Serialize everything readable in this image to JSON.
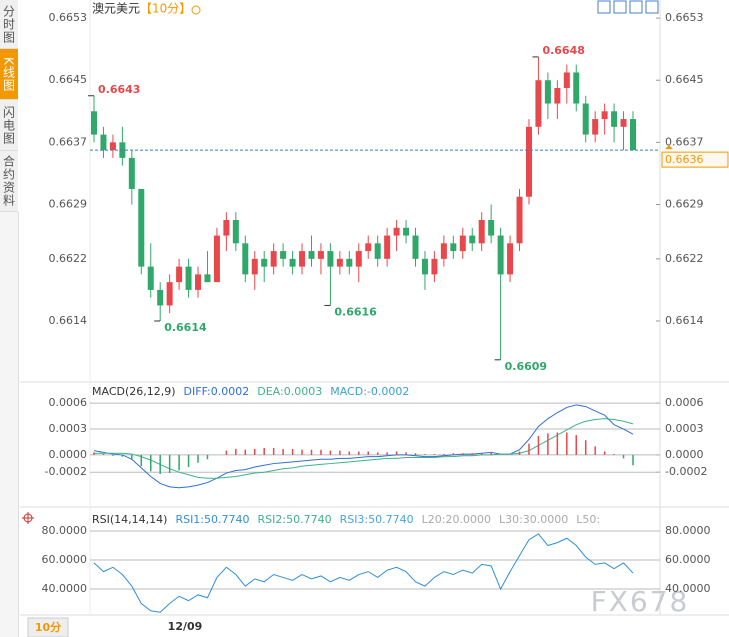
{
  "sidebar": {
    "tabs": [
      "分时图",
      "K线图",
      "闪电图",
      "合约资料"
    ]
  },
  "header": {
    "symbol": "澳元美元",
    "period": "【10分】"
  },
  "chart_data": [
    {
      "type": "candlestick",
      "ylim": [
        0.66064,
        0.66543
      ],
      "yticks": [
        0.6653,
        0.6645,
        0.6637,
        0.6629,
        0.6622,
        0.6614
      ],
      "up_color": "#e8484c",
      "down_color": "#2fa86a",
      "last_price": 0.6636,
      "annotations": [
        0.6643,
        0.6648,
        0.6614,
        0.6616,
        0.6609
      ],
      "candles": [
        [
          0.6641,
          0.6643,
          0.6637,
          0.6638
        ],
        [
          0.6638,
          0.6639,
          0.6635,
          0.6636
        ],
        [
          0.6636,
          0.6638,
          0.6635,
          0.6637
        ],
        [
          0.6637,
          0.6639,
          0.6634,
          0.6635
        ],
        [
          0.6635,
          0.6636,
          0.6629,
          0.6631
        ],
        [
          0.6631,
          0.6631,
          0.662,
          0.6621
        ],
        [
          0.6621,
          0.6624,
          0.6617,
          0.6618
        ],
        [
          0.6618,
          0.6619,
          0.6614,
          0.6616
        ],
        [
          0.6616,
          0.662,
          0.6615,
          0.6619
        ],
        [
          0.6619,
          0.6622,
          0.6618,
          0.6621
        ],
        [
          0.6621,
          0.6622,
          0.6617,
          0.6618
        ],
        [
          0.6618,
          0.6621,
          0.6617,
          0.662
        ],
        [
          0.662,
          0.6623,
          0.6619,
          0.6619
        ],
        [
          0.6619,
          0.6626,
          0.6619,
          0.6625
        ],
        [
          0.6625,
          0.6628,
          0.6623,
          0.6627
        ],
        [
          0.6627,
          0.6628,
          0.6623,
          0.6624
        ],
        [
          0.6624,
          0.6625,
          0.6619,
          0.662
        ],
        [
          0.662,
          0.6623,
          0.6618,
          0.6622
        ],
        [
          0.6622,
          0.6623,
          0.6619,
          0.6621
        ],
        [
          0.6621,
          0.6624,
          0.662,
          0.6623
        ],
        [
          0.6623,
          0.6624,
          0.6621,
          0.6622
        ],
        [
          0.6622,
          0.6623,
          0.662,
          0.6621
        ],
        [
          0.6621,
          0.6624,
          0.662,
          0.6623
        ],
        [
          0.6623,
          0.6625,
          0.6621,
          0.6622
        ],
        [
          0.6622,
          0.6624,
          0.662,
          0.6623
        ],
        [
          0.6623,
          0.6624,
          0.6616,
          0.6621
        ],
        [
          0.6621,
          0.6623,
          0.662,
          0.6622
        ],
        [
          0.6622,
          0.6623,
          0.662,
          0.6621
        ],
        [
          0.6621,
          0.6624,
          0.6619,
          0.6623
        ],
        [
          0.6623,
          0.6625,
          0.6622,
          0.6624
        ],
        [
          0.6624,
          0.6625,
          0.6621,
          0.6622
        ],
        [
          0.6622,
          0.6626,
          0.6621,
          0.6625
        ],
        [
          0.6625,
          0.6627,
          0.6623,
          0.6626
        ],
        [
          0.6626,
          0.6627,
          0.6624,
          0.6625
        ],
        [
          0.6625,
          0.6626,
          0.6621,
          0.6622
        ],
        [
          0.6622,
          0.6623,
          0.6618,
          0.662
        ],
        [
          0.662,
          0.6623,
          0.6619,
          0.6622
        ],
        [
          0.6622,
          0.6625,
          0.6621,
          0.6624
        ],
        [
          0.6624,
          0.6625,
          0.6622,
          0.6623
        ],
        [
          0.6623,
          0.6626,
          0.6622,
          0.6625
        ],
        [
          0.6625,
          0.6626,
          0.6623,
          0.6624
        ],
        [
          0.6624,
          0.6628,
          0.6623,
          0.6627
        ],
        [
          0.6627,
          0.6629,
          0.6624,
          0.6625
        ],
        [
          0.6625,
          0.6626,
          0.6609,
          0.662
        ],
        [
          0.662,
          0.6625,
          0.6619,
          0.6624
        ],
        [
          0.6624,
          0.6631,
          0.6623,
          0.663
        ],
        [
          0.663,
          0.664,
          0.6629,
          0.6639
        ],
        [
          0.6639,
          0.6648,
          0.6638,
          0.6645
        ],
        [
          0.6645,
          0.6646,
          0.664,
          0.6642
        ],
        [
          0.6642,
          0.6645,
          0.664,
          0.6644
        ],
        [
          0.6644,
          0.6647,
          0.6642,
          0.6646
        ],
        [
          0.6646,
          0.6647,
          0.6641,
          0.6642
        ],
        [
          0.6642,
          0.6643,
          0.6637,
          0.6638
        ],
        [
          0.6638,
          0.6641,
          0.6637,
          0.664
        ],
        [
          0.664,
          0.6642,
          0.6638,
          0.6641
        ],
        [
          0.6641,
          0.6642,
          0.6637,
          0.6639
        ],
        [
          0.6639,
          0.6641,
          0.6636,
          0.664
        ],
        [
          0.664,
          0.6641,
          0.6636,
          0.6636
        ]
      ]
    },
    {
      "type": "macd",
      "title": "MACD(26,12,9)",
      "ylim": [
        -0.00058,
        0.00081
      ],
      "yticks": [
        0.0006,
        0.0003,
        {
          "value": 0,
          "label": "0.0000"
        },
        -0.0002
      ],
      "up_color": "#e8484c",
      "down_color": "#2fa86a",
      "series": [
        {
          "name": "DIFF:0.0002",
          "color": "#2f6fd8",
          "values": [
            5e-05,
            3e-05,
            1e-05,
            0,
            -5e-05,
            -0.00015,
            -0.00025,
            -0.00033,
            -0.00037,
            -0.00038,
            -0.00037,
            -0.00035,
            -0.00032,
            -0.00027,
            -0.00021,
            -0.00018,
            -0.00017,
            -0.00014,
            -0.00012,
            -0.0001,
            -9e-05,
            -8e-05,
            -7e-05,
            -6e-05,
            -5e-05,
            -5e-05,
            -4e-05,
            -4e-05,
            -3e-05,
            -2e-05,
            -2e-05,
            -1e-05,
            0,
            0,
            -1e-05,
            -2e-05,
            -2e-05,
            -1e-05,
            0,
            1e-05,
            1e-05,
            2e-05,
            3e-05,
            1e-05,
            1e-05,
            6e-05,
            0.00018,
            0.00033,
            0.00042,
            0.00049,
            0.00055,
            0.00058,
            0.00056,
            0.00051,
            0.00046,
            0.00035,
            0.0003,
            0.00024
          ]
        },
        {
          "name": "DEA:0.0003",
          "color": "#3cb38a",
          "values": [
            2e-05,
            2e-05,
            2e-05,
            2e-05,
            1e-05,
            -2e-05,
            -6e-05,
            -0.00011,
            -0.00016,
            -0.0002,
            -0.00023,
            -0.00026,
            -0.00027,
            -0.00027,
            -0.00026,
            -0.00025,
            -0.00023,
            -0.00021,
            -0.0002,
            -0.00018,
            -0.00016,
            -0.00015,
            -0.00013,
            -0.00012,
            -0.00011,
            -0.0001,
            -9e-05,
            -8e-05,
            -7e-05,
            -6e-05,
            -5e-05,
            -4e-05,
            -4e-05,
            -3e-05,
            -3e-05,
            -3e-05,
            -3e-05,
            -2e-05,
            -2e-05,
            -1e-05,
            -1e-05,
            0,
            0,
            1e-05,
            1e-05,
            2e-05,
            5e-05,
            0.00011,
            0.00017,
            0.00023,
            0.00029,
            0.00035,
            0.00039,
            0.00041,
            0.00042,
            0.00041,
            0.00039,
            0.00036
          ]
        },
        {
          "name": "MACD:-0.0002",
          "color": "#3a9fd0",
          "histogram": true,
          "values": [
            3e-05,
            1e-05,
            -1e-05,
            -2e-05,
            -6e-05,
            -0.00013,
            -0.00019,
            -0.00022,
            -0.00021,
            -0.00018,
            -0.00014,
            -9e-05,
            -5e-05,
            0,
            5e-05,
            7e-05,
            6e-05,
            7e-05,
            8e-05,
            8e-05,
            7e-05,
            7e-05,
            6e-05,
            6e-05,
            6e-05,
            5e-05,
            5e-05,
            4e-05,
            4e-05,
            4e-05,
            3e-05,
            3e-05,
            4e-05,
            3e-05,
            2e-05,
            1e-05,
            1e-05,
            1e-05,
            2e-05,
            2e-05,
            2e-05,
            2e-05,
            3e-05,
            0,
            0,
            4e-05,
            0.00013,
            0.00022,
            0.00025,
            0.00026,
            0.00026,
            0.00023,
            0.00017,
            0.0001,
            4e-05,
            1e-05,
            -4e-05,
            -0.00012
          ]
        }
      ]
    },
    {
      "type": "rsi",
      "title": "RSI(14,14,14)",
      "ylim": [
        22.1,
        93.1
      ],
      "yticks": [
        {
          "value": 80,
          "label": "80.0000"
        },
        {
          "value": 60,
          "label": "60.0000"
        },
        {
          "value": 40,
          "label": "40.0000"
        }
      ],
      "series": [
        {
          "name": "RSI1:50.7740",
          "color": "#2f8fd8",
          "values": [
            58,
            52,
            55,
            50,
            42,
            30,
            25,
            24,
            30,
            35,
            32,
            36,
            34,
            48,
            55,
            50,
            42,
            47,
            45,
            50,
            48,
            46,
            50,
            47,
            49,
            45,
            48,
            46,
            50,
            52,
            48,
            53,
            55,
            52,
            45,
            42,
            48,
            52,
            50,
            53,
            51,
            57,
            56,
            40,
            52,
            63,
            74,
            78,
            70,
            72,
            75,
            70,
            62,
            57,
            58,
            54,
            58,
            51
          ]
        }
      ],
      "legend_extra": [
        {
          "text": "RSI2:50.7740",
          "color": "#3cb38a"
        },
        {
          "text": "RSI3:50.7740",
          "color": "#4aa3df"
        },
        {
          "text": "L20:20.0000",
          "color": "#aaaaaa"
        },
        {
          "text": "L30:30.0000",
          "color": "#aaaaaa"
        },
        {
          "text": "L50:",
          "color": "#aaaaaa"
        }
      ]
    }
  ],
  "footer": {
    "period_tab": "10分",
    "date": "12/09",
    "watermark": "FX678"
  }
}
